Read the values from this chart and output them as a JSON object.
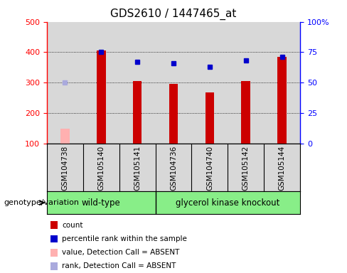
{
  "title": "GDS2610 / 1447465_at",
  "samples": [
    "GSM104738",
    "GSM105140",
    "GSM105141",
    "GSM104736",
    "GSM104740",
    "GSM105142",
    "GSM105144"
  ],
  "count_values": [
    null,
    405,
    305,
    295,
    268,
    305,
    385
  ],
  "count_absent": [
    148,
    null,
    null,
    null,
    null,
    null,
    null
  ],
  "percentile_values": [
    null,
    75,
    67,
    66,
    63,
    68,
    71
  ],
  "percentile_absent": [
    50,
    null,
    null,
    null,
    null,
    null,
    null
  ],
  "ylim_left": [
    100,
    500
  ],
  "ylim_right": [
    0,
    100
  ],
  "yticks_left": [
    100,
    200,
    300,
    400,
    500
  ],
  "yticks_right": [
    0,
    25,
    50,
    75,
    100
  ],
  "yticklabels_right": [
    "0",
    "25",
    "50",
    "75",
    "100%"
  ],
  "bar_color": "#cc0000",
  "bar_absent_color": "#ffb0b0",
  "dot_color": "#0000cc",
  "dot_absent_color": "#aaaadd",
  "wild_type_label": "wild-type",
  "knockout_label": "glycerol kinase knockout",
  "group_label": "genotype/variation",
  "group_bg_color": "#88ee88",
  "bar_width": 0.25,
  "bar_bottom": 100,
  "legend_items": [
    {
      "label": "count",
      "color": "#cc0000"
    },
    {
      "label": "percentile rank within the sample",
      "color": "#0000cc"
    },
    {
      "label": "value, Detection Call = ABSENT",
      "color": "#ffb0b0"
    },
    {
      "label": "rank, Detection Call = ABSENT",
      "color": "#aaaadd"
    }
  ],
  "plot_bg_color": "#d8d8d8",
  "fig_bg_color": "#ffffff",
  "title_fontsize": 11,
  "tick_fontsize": 8,
  "grid_yticks": [
    200,
    300,
    400
  ]
}
